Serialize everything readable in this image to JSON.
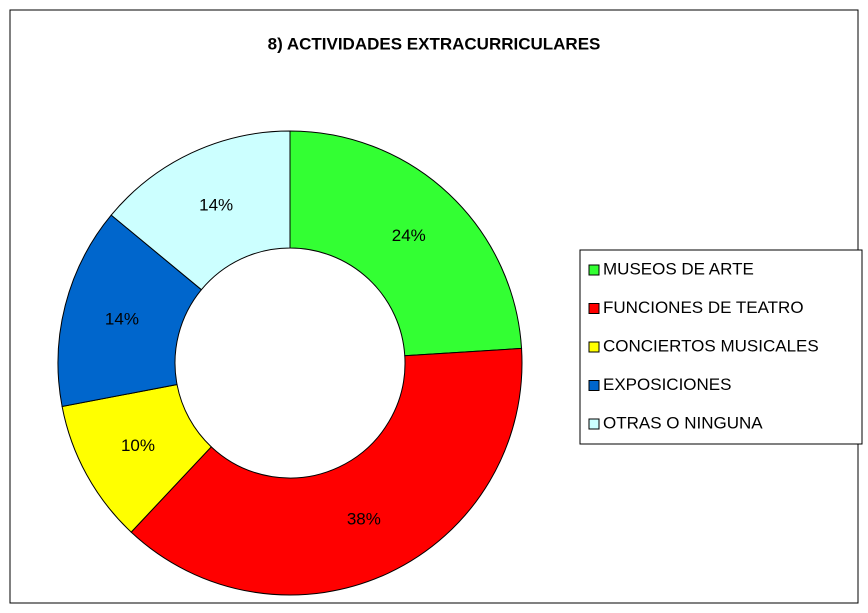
{
  "chart_data": {
    "type": "donut",
    "title": "8) ACTIVIDADES EXTRACURRICULARES",
    "categories": [
      "MUSEOS DE ARTE",
      "FUNCIONES DE TEATRO",
      "CONCIERTOS MUSICALES",
      "EXPOSICIONES",
      "OTRAS O NINGUNA"
    ],
    "values": [
      24,
      38,
      10,
      14,
      14
    ],
    "value_labels": [
      "24%",
      "38%",
      "10%",
      "14%",
      "14%"
    ],
    "colors": [
      "#33ff33",
      "#ff0000",
      "#ffff00",
      "#0066cc",
      "#ccffff"
    ],
    "legend": "right"
  }
}
